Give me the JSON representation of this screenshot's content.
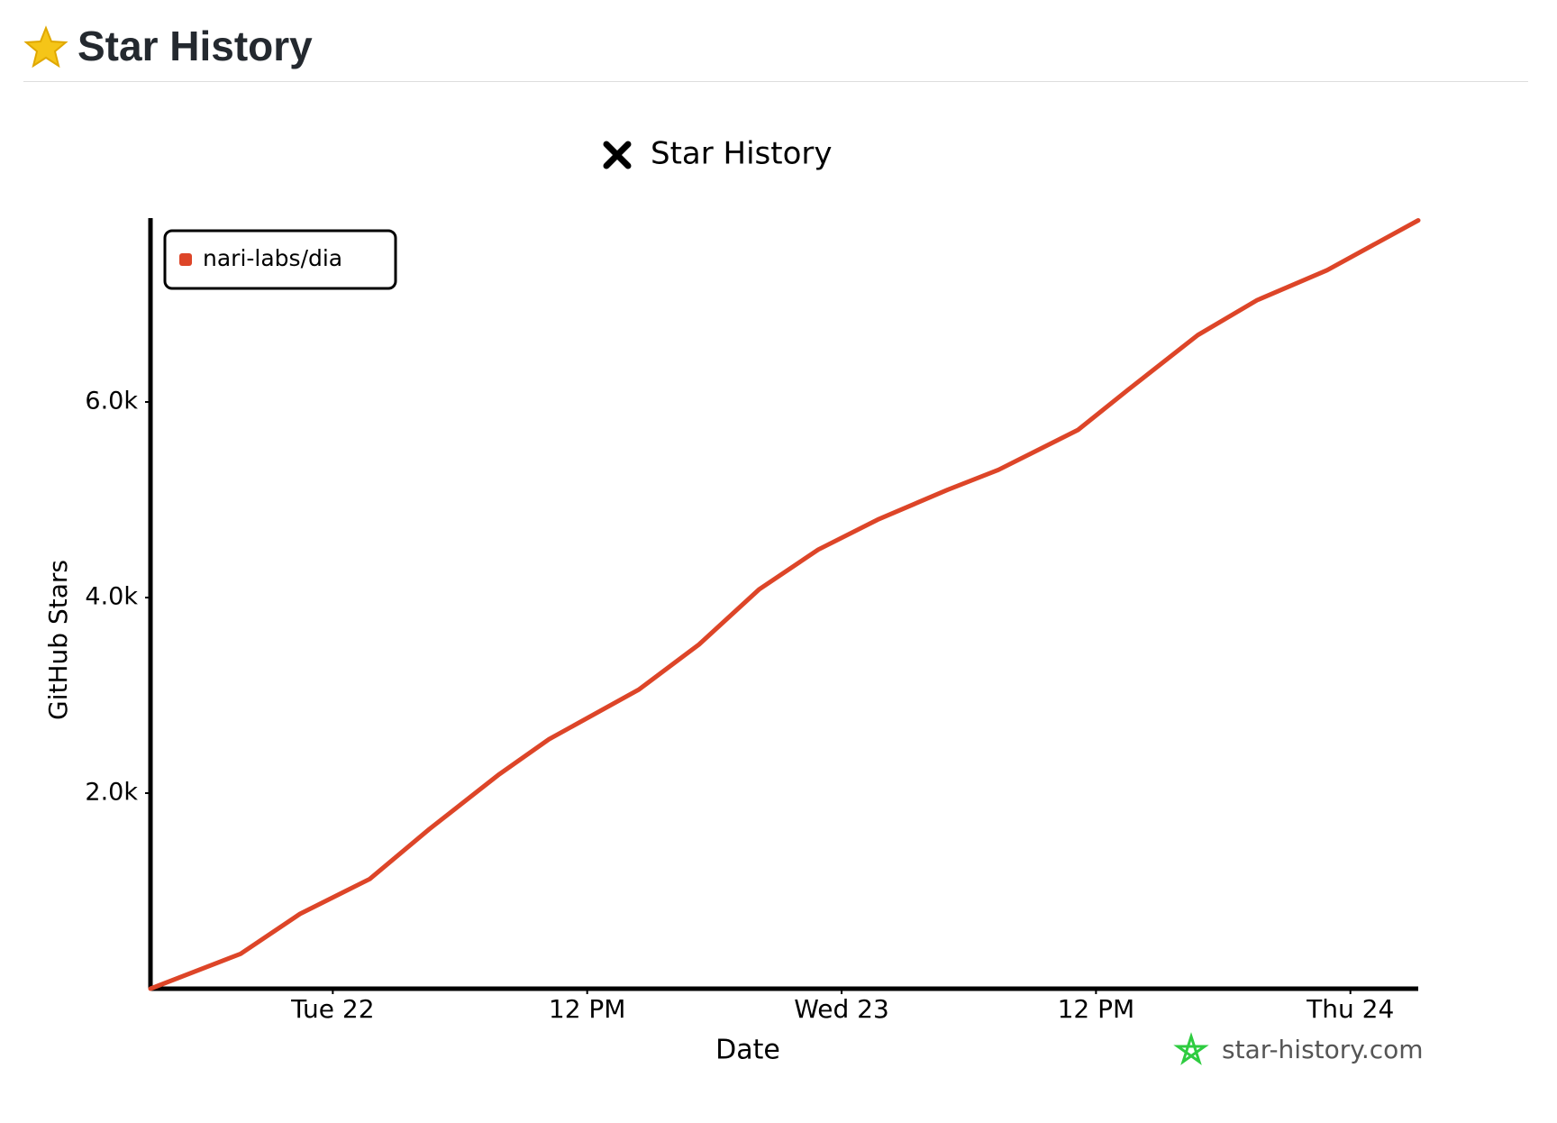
{
  "header": {
    "title": "Star History"
  },
  "chart_data": {
    "type": "line",
    "title": "Star History",
    "xlabel": "Date",
    "ylabel": "GitHub Stars",
    "x": [
      -8.6,
      -4.35,
      -1.55,
      1.74,
      4.56,
      7.86,
      10.2,
      14.45,
      17.27,
      20.1,
      22.9,
      25.7,
      29.0,
      31.4,
      35.15,
      37.5,
      40.8,
      43.6,
      46.9,
      51.2
    ],
    "series": [
      {
        "name": "nari-labs/dia",
        "color": "#dd4528",
        "values": [
          0,
          357,
          765,
          1122,
          1633,
          2194,
          2551,
          3061,
          3520,
          4082,
          4490,
          4796,
          5102,
          5306,
          5714,
          6122,
          6684,
          7041,
          7347,
          7857
        ]
      }
    ],
    "xlim": [
      -8.6,
      51.2
    ],
    "ylim": [
      0,
      7880
    ],
    "xticks": [
      {
        "value": 0,
        "label": "Tue 22"
      },
      {
        "value": 12,
        "label": "12 PM"
      },
      {
        "value": 24,
        "label": "Wed 23"
      },
      {
        "value": 36,
        "label": "12 PM"
      },
      {
        "value": 48,
        "label": "Thu 24"
      }
    ],
    "yticks": [
      {
        "value": 2000,
        "label": "2.0k"
      },
      {
        "value": 4000,
        "label": "4.0k"
      },
      {
        "value": 6000,
        "label": "6.0k"
      }
    ],
    "legend": "upper left",
    "grid": false,
    "watermark": "star-history.com"
  }
}
